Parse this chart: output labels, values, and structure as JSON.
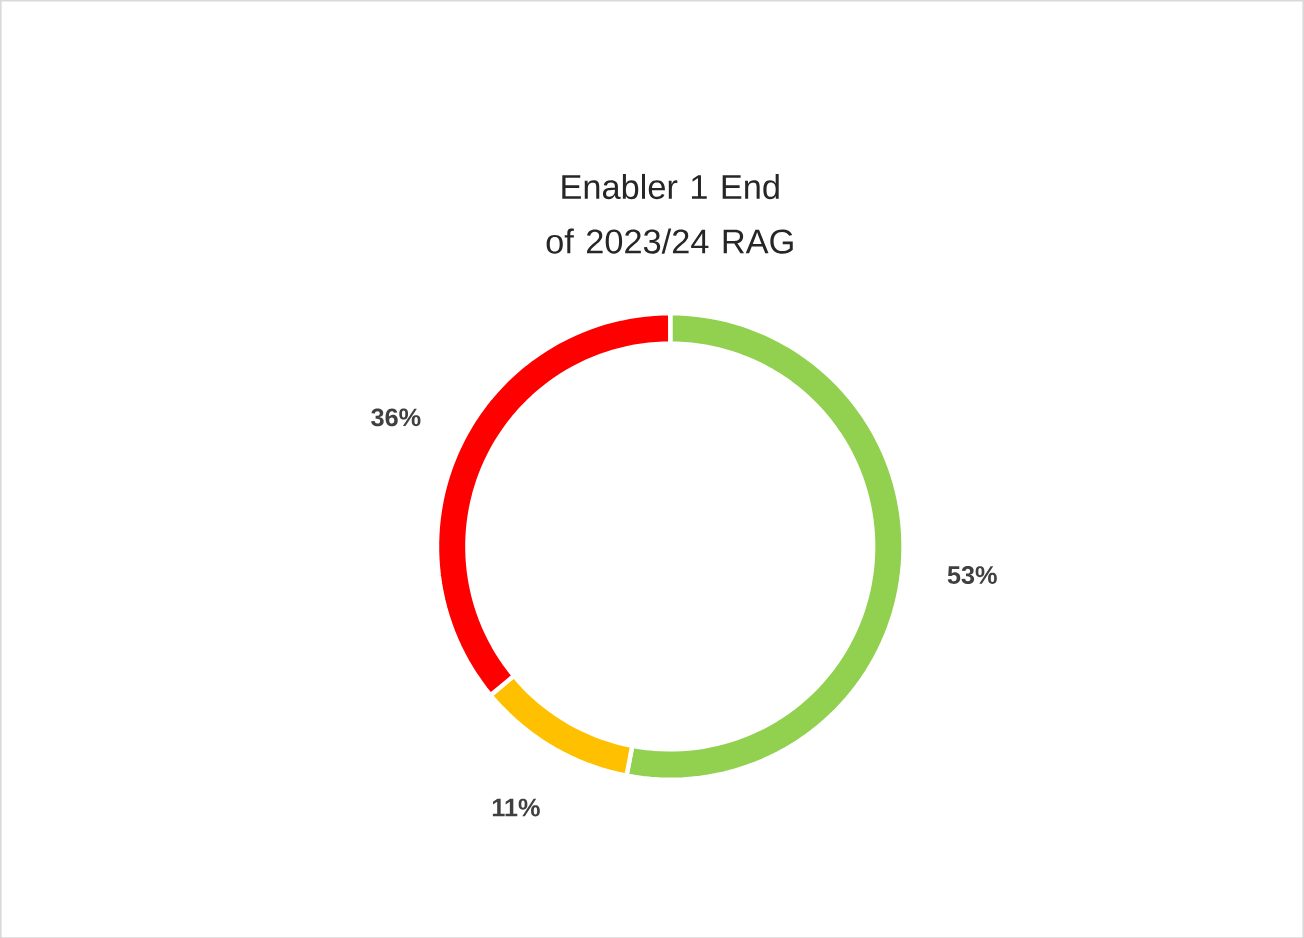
{
  "chart_data": {
    "type": "donut",
    "title": "Enabler 1 End of 2023/24 RAG",
    "categories": [
      null,
      null,
      null
    ],
    "values": [
      53,
      11,
      36
    ],
    "colors": [
      "#92d050",
      "#ffc000",
      "#ff0000"
    ],
    "value_labels": [
      "53%",
      "11%",
      "36%"
    ]
  }
}
